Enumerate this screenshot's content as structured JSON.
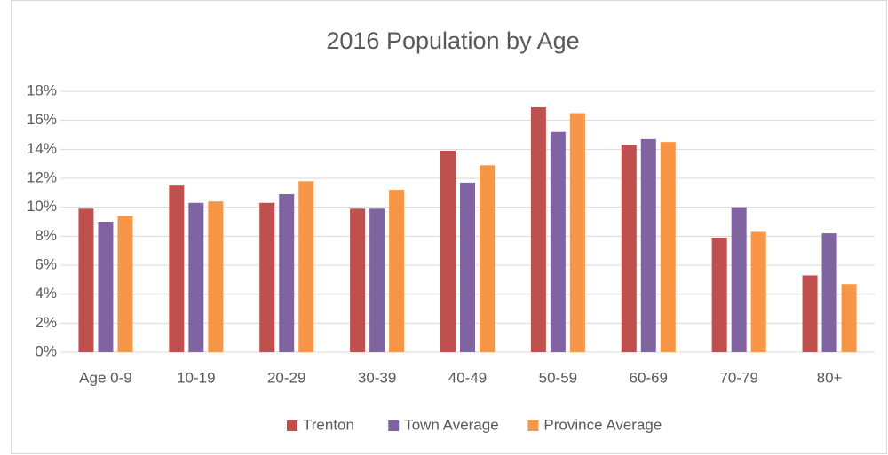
{
  "chart_data": {
    "type": "bar",
    "title": "2016 Population by Age",
    "categories": [
      "Age 0-9",
      "10-19",
      "20-29",
      "30-39",
      "40-49",
      "50-59",
      "60-69",
      "70-79",
      "80+"
    ],
    "series": [
      {
        "name": "Trenton",
        "color": "#c0504d",
        "values": [
          9.9,
          11.5,
          10.3,
          9.9,
          13.9,
          16.9,
          14.3,
          7.9,
          5.3
        ]
      },
      {
        "name": "Town Average",
        "color": "#8064a2",
        "values": [
          9.0,
          10.3,
          10.9,
          9.9,
          11.7,
          15.2,
          14.7,
          10.0,
          8.2
        ]
      },
      {
        "name": "Province Average",
        "color": "#f79646",
        "values": [
          9.4,
          10.4,
          11.8,
          11.2,
          12.9,
          16.5,
          14.5,
          8.3,
          4.7
        ]
      }
    ],
    "ylim": [
      0,
      18
    ],
    "yticks": [
      {
        "value": 0,
        "label": "0%"
      },
      {
        "value": 2,
        "label": "2%"
      },
      {
        "value": 4,
        "label": "4%"
      },
      {
        "value": 6,
        "label": "6%"
      },
      {
        "value": 8,
        "label": "8%"
      },
      {
        "value": 10,
        "label": "10%"
      },
      {
        "value": 12,
        "label": "12%"
      },
      {
        "value": 14,
        "label": "14%"
      },
      {
        "value": 16,
        "label": "16%"
      },
      {
        "value": 18,
        "label": "18%"
      }
    ],
    "grid": true,
    "legend": "bottom"
  }
}
